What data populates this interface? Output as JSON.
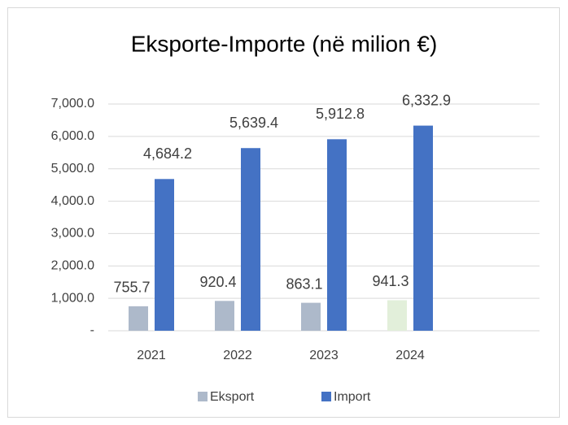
{
  "chart_data": {
    "type": "bar",
    "title": "Eksporte-Importe (në milion €)",
    "categories": [
      "2021",
      "2022",
      "2023",
      "2024",
      null
    ],
    "series": [
      {
        "name": "Eksport",
        "color": "#adb9ca",
        "colors": [
          "#adb9ca",
          "#adb9ca",
          "#adb9ca",
          "#e2efda",
          null
        ],
        "values": [
          755.7,
          920.4,
          863.1,
          941.3,
          null
        ],
        "value_labels": [
          "755.7",
          "920.4",
          "863.1",
          "941.3",
          null
        ]
      },
      {
        "name": "Import",
        "color": "#4472c4",
        "colors": [
          "#4472c4",
          "#4472c4",
          "#4472c4",
          "#4472c4",
          null
        ],
        "values": [
          4684.2,
          5639.4,
          5912.8,
          6332.9,
          null
        ],
        "value_labels": [
          "4,684.2",
          "5,639.4",
          "5,912.8",
          "6,332.9",
          null
        ]
      }
    ],
    "ylim": [
      0,
      7000
    ],
    "yticks": [
      {
        "value": 0,
        "label": "-"
      },
      {
        "value": 1000,
        "label": "1,000.0"
      },
      {
        "value": 2000,
        "label": "2,000.0"
      },
      {
        "value": 3000,
        "label": "3,000.0"
      },
      {
        "value": 4000,
        "label": "4,000.0"
      },
      {
        "value": 5000,
        "label": "5,000.0"
      },
      {
        "value": 6000,
        "label": "6,000.0"
      },
      {
        "value": 7000,
        "label": "7,000.0"
      }
    ],
    "grid": true,
    "legend": "bottom"
  }
}
